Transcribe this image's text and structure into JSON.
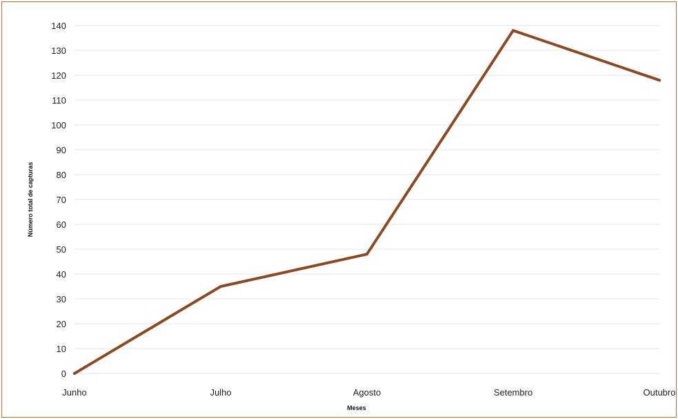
{
  "colors": {
    "frame_border": "#c06a2b",
    "series_line": "#8a4a24",
    "gridline": "#e4e4e4"
  },
  "chart_data": {
    "type": "line",
    "categories": [
      "Junho",
      "Julho",
      "Agosto",
      "Setembro",
      "Outubro"
    ],
    "series": [
      {
        "values": [
          0,
          35,
          48,
          138,
          118
        ]
      }
    ],
    "xlabel": "Meses",
    "ylabel": "Número total de capturas",
    "ylim": [
      0,
      140
    ],
    "yticks": [
      "0",
      "10",
      "20",
      "30",
      "40",
      "50",
      "60",
      "70",
      "80",
      "90",
      "100",
      "110",
      "120",
      "130",
      "140"
    ],
    "grid": true
  }
}
